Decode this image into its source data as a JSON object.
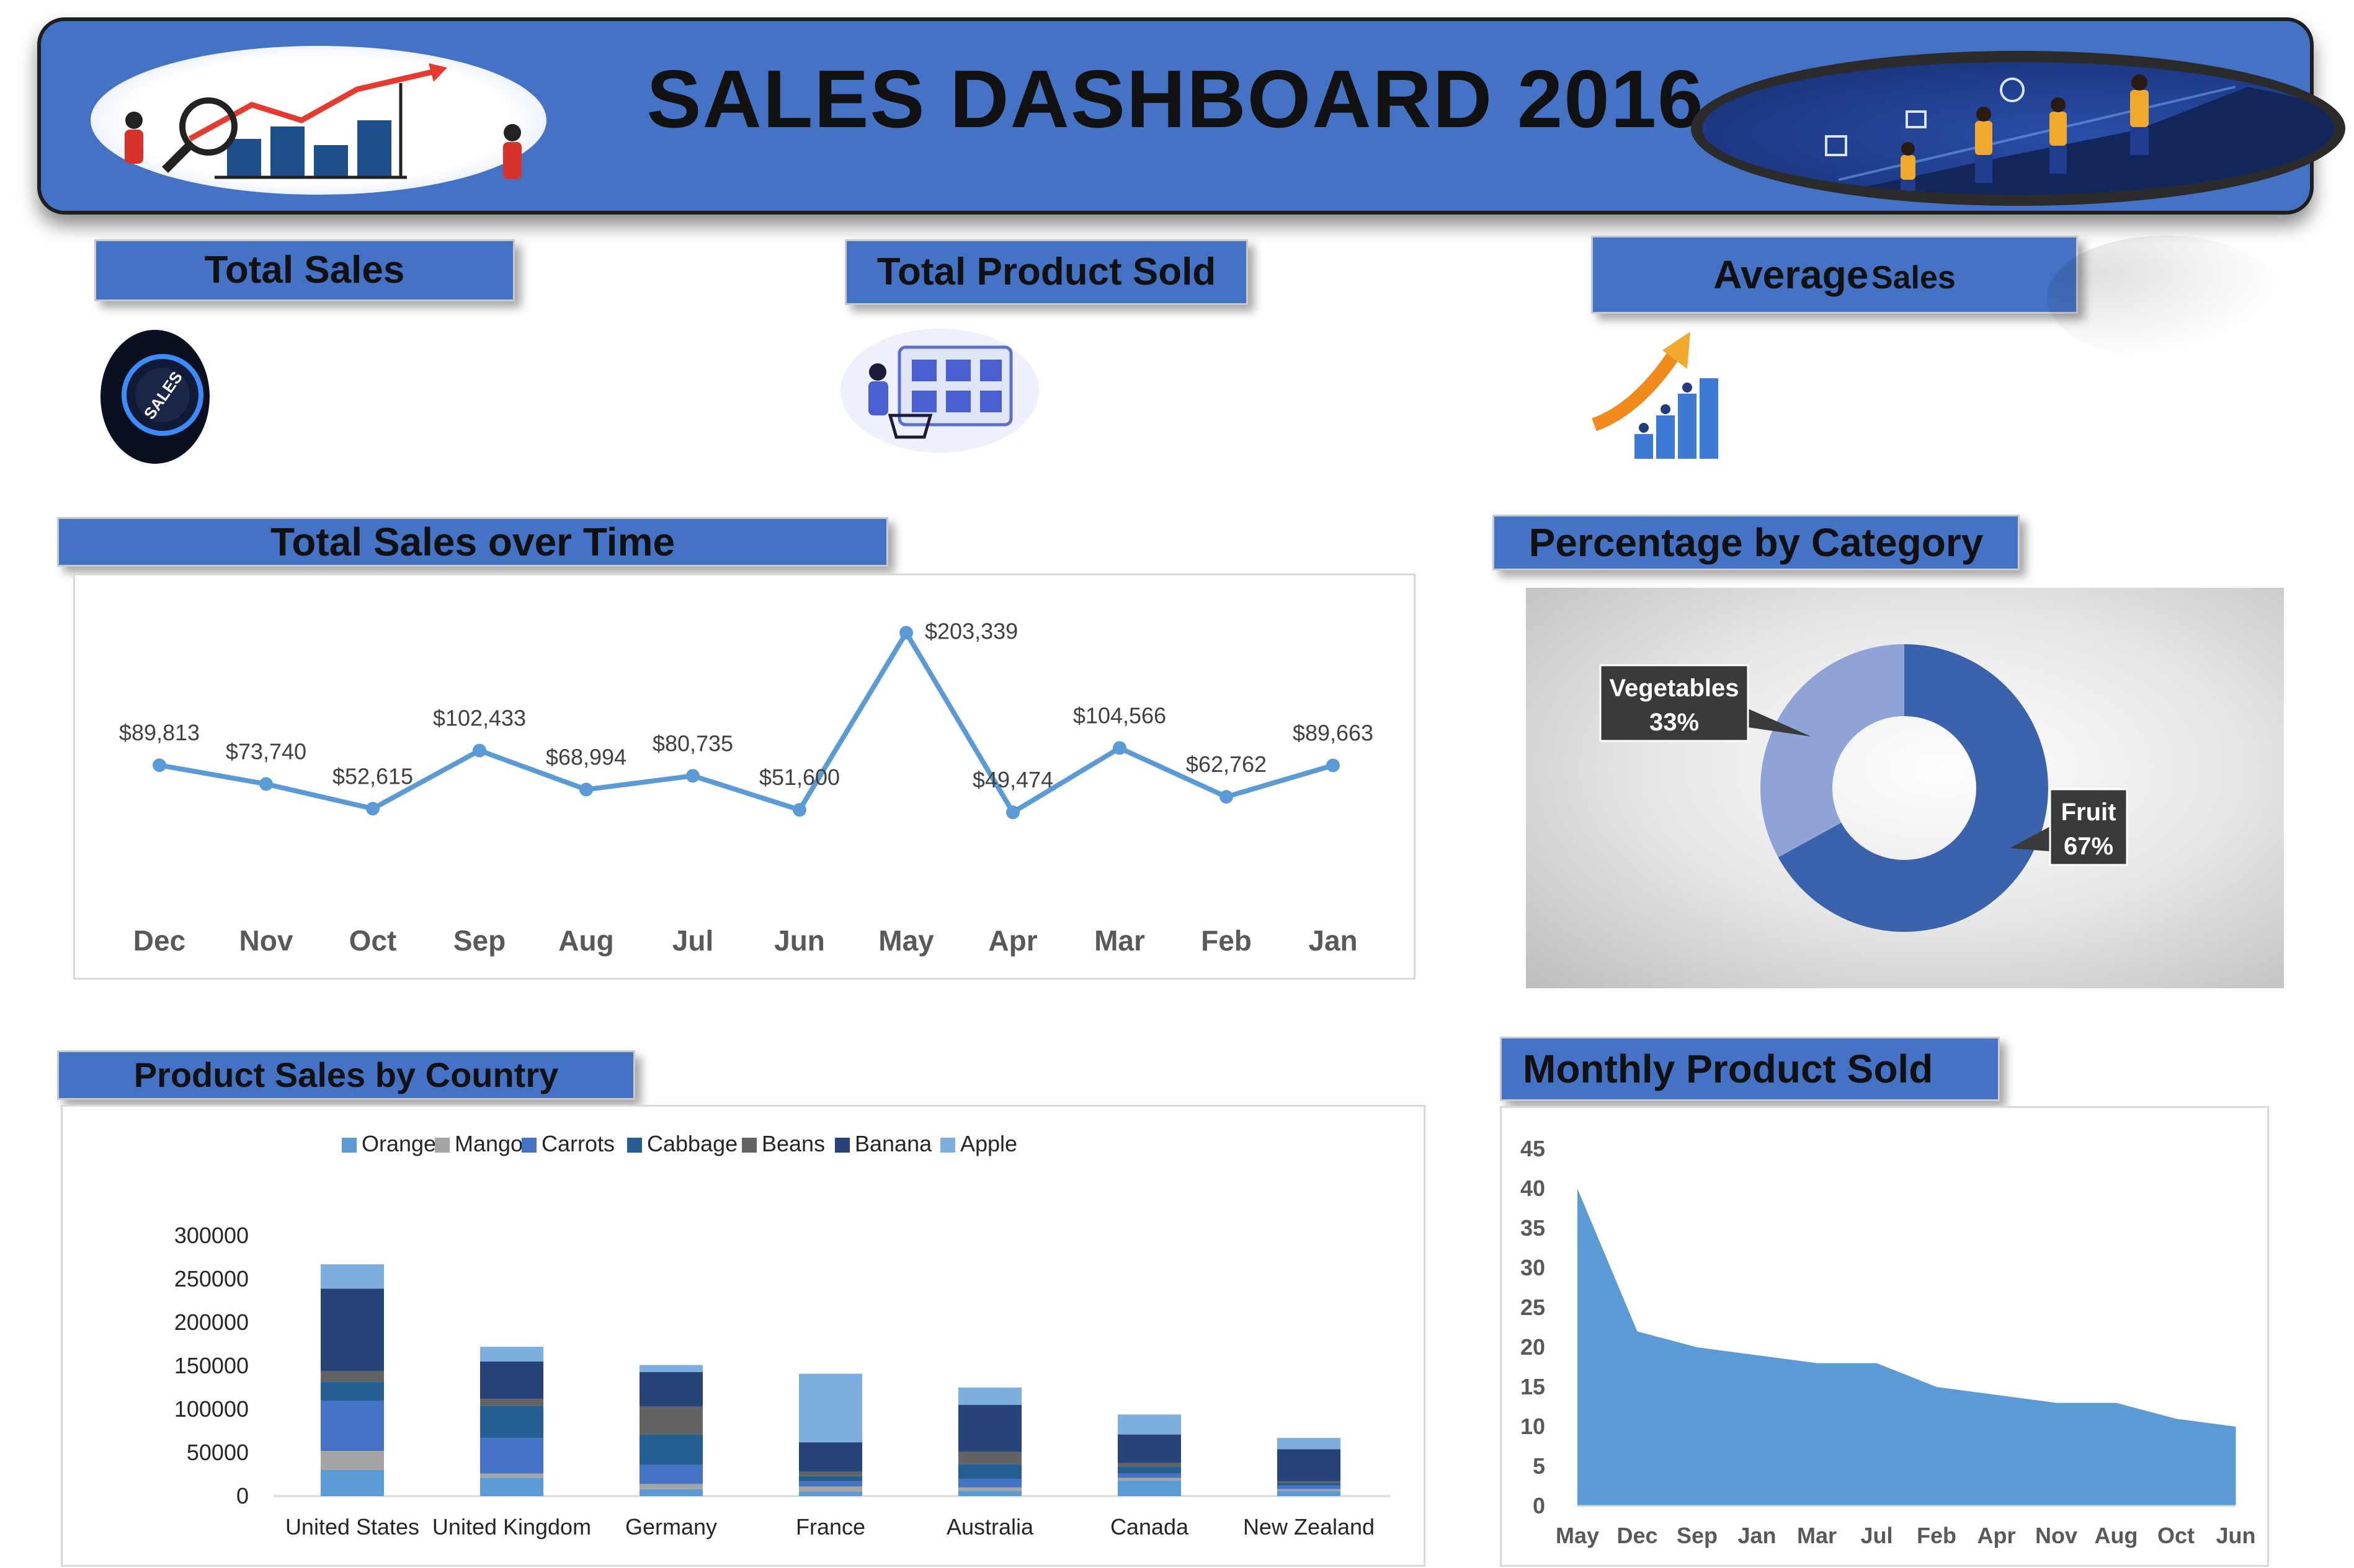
{
  "header": {
    "title": "SALES DASHBOARD 2016"
  },
  "kpis": [
    {
      "label": "Total Sales"
    },
    {
      "label": "Total Product Sold"
    },
    {
      "label_main": "Average",
      "label_small": "Sales"
    }
  ],
  "kpi_icon_text": "SALES",
  "sections": {
    "sales_over_time": "Total Sales over Time",
    "percentage_by_category": "Percentage by Category",
    "product_sales_by_country": "Product Sales by Country",
    "monthly_product_sold": "Monthly Product Sold"
  },
  "colors": {
    "banner": "#4472c4",
    "line": "#5b9bd5",
    "donut_fruit": "#3a62ad",
    "donut_veg": "#8fa3d6",
    "area": "#5b9bd5"
  },
  "icons": [
    "magnifier-chart-illustration",
    "team-climbing-illustration",
    "sales-dial-icon",
    "online-shopping-icon",
    "growth-arrow-icon"
  ],
  "chart_data": [
    {
      "type": "line",
      "title": "",
      "categories": [
        "Dec",
        "Nov",
        "Oct",
        "Sep",
        "Aug",
        "Jul",
        "Jun",
        "May",
        "Apr",
        "Mar",
        "Feb",
        "Jan"
      ],
      "values": [
        89813,
        73740,
        52615,
        102433,
        68994,
        80735,
        51600,
        203339,
        49474,
        104566,
        62762,
        89663
      ],
      "data_labels": [
        "$89,813",
        "$73,740",
        "$52,615",
        "$102,433",
        "$68,994",
        "$80,735",
        "$51,600",
        "$203,339",
        "$49,474",
        "$104,566",
        "$62,762",
        "$89,663"
      ],
      "grid": false
    },
    {
      "type": "pie",
      "subtype": "donut",
      "slices": [
        {
          "name": "Fruit",
          "value": 67,
          "label": "67%"
        },
        {
          "name": "Vegetables",
          "value": 33,
          "label": "33%"
        }
      ]
    },
    {
      "type": "bar",
      "stacked": true,
      "legend_position": "top",
      "categories": [
        "United States",
        "United Kingdom",
        "Germany",
        "France",
        "Australia",
        "Canada",
        "New Zealand"
      ],
      "yticks": [
        "0",
        "50000",
        "100000",
        "150000",
        "200000",
        "250000",
        "300000"
      ],
      "ylim": [
        0,
        300000
      ],
      "series": [
        {
          "name": "Orange",
          "color": "#5b9bd5",
          "values": [
            30000,
            21000,
            8000,
            5000,
            6000,
            18000,
            6000
          ]
        },
        {
          "name": "Mango",
          "color": "#a5a5a5",
          "values": [
            22000,
            5000,
            6000,
            6000,
            4000,
            3000,
            2000
          ]
        },
        {
          "name": "Carrots",
          "color": "#4472c4",
          "values": [
            58000,
            41000,
            22000,
            6000,
            10000,
            5000,
            4000
          ]
        },
        {
          "name": "Cabbage",
          "color": "#255e91",
          "values": [
            22000,
            37000,
            35000,
            6000,
            17000,
            8000,
            3000
          ]
        },
        {
          "name": "Beans",
          "color": "#636363",
          "values": [
            12000,
            8000,
            32000,
            5000,
            14000,
            4000,
            2000
          ]
        },
        {
          "name": "Banana",
          "color": "#264478",
          "values": [
            95000,
            43000,
            40000,
            34000,
            54000,
            33000,
            37000
          ]
        },
        {
          "name": "Apple",
          "color": "#7cafdd",
          "values": [
            28000,
            17000,
            8000,
            79000,
            20000,
            23000,
            13000
          ]
        }
      ]
    },
    {
      "type": "area",
      "categories": [
        "May",
        "Dec",
        "Sep",
        "Jan",
        "Mar",
        "Jul",
        "Feb",
        "Apr",
        "Nov",
        "Aug",
        "Oct",
        "Jun"
      ],
      "values": [
        40,
        22,
        20,
        19,
        18,
        18,
        15,
        14,
        13,
        13,
        11,
        10
      ],
      "yticks": [
        "0",
        "5",
        "10",
        "15",
        "20",
        "25",
        "30",
        "35",
        "40",
        "45"
      ],
      "ylim": [
        0,
        45
      ],
      "grid": false
    }
  ]
}
